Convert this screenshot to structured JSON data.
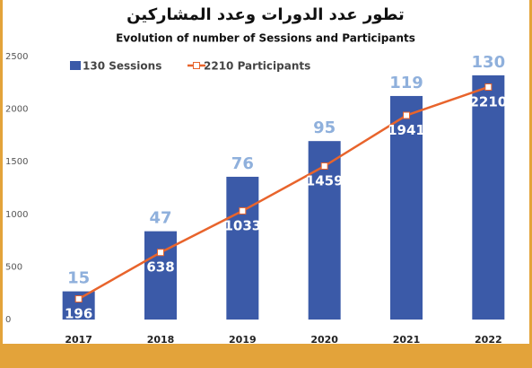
{
  "chart_data": {
    "type": "bar",
    "title": "تطور عدد الدورات وعدد المشاركين",
    "subtitle": "Evolution of number of Sessions and Participants",
    "categories": [
      "2017",
      "2018",
      "2019",
      "2020",
      "2021",
      "2022"
    ],
    "series": [
      {
        "name": "130 Sessions",
        "type": "bar",
        "axis": "y2",
        "color": "#3b5aa8",
        "label_color": "#8fb0dc",
        "values": [
          15,
          47,
          76,
          95,
          119,
          130
        ]
      },
      {
        "name": "2210 Participants",
        "type": "line",
        "color": "#e8642c",
        "label_color": "#ffffff",
        "values": [
          196,
          638,
          1033,
          1459,
          1941,
          2210
        ]
      }
    ],
    "ylim": [
      0,
      2500
    ],
    "yticks": [
      0,
      500,
      1000,
      1500,
      2000,
      2500
    ],
    "y2lim": [
      0,
      140
    ],
    "grid": false,
    "legend": "top-left"
  }
}
